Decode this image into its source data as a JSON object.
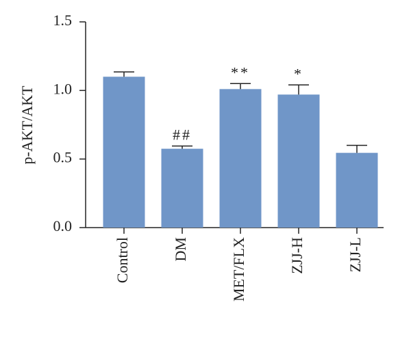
{
  "chart_data": {
    "type": "bar",
    "y_label": "p-AKT/AKT",
    "categories": [
      "Control",
      "DM",
      "MET/FLX",
      "ZJJ-H",
      "ZJJ-L"
    ],
    "values": [
      1.1,
      0.575,
      1.01,
      0.97,
      0.545
    ],
    "errors": [
      0.035,
      0.02,
      0.04,
      0.07,
      0.055
    ],
    "annotations": [
      null,
      "##",
      "**",
      "*",
      null
    ],
    "color": "#7096c8",
    "ylim": [
      0,
      1.5
    ],
    "yticks": [
      {
        "value": 0,
        "label": "0.0"
      },
      0.5,
      {
        "value": 1,
        "label": "1.0"
      },
      1.5
    ]
  }
}
